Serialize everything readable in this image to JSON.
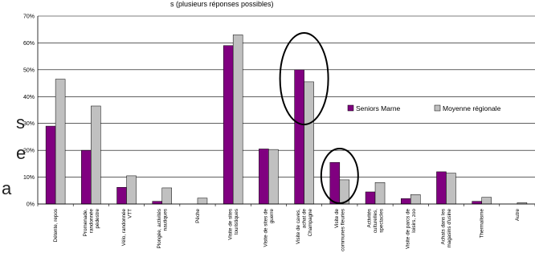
{
  "chart_data": {
    "type": "bar",
    "title": "",
    "xlabel": "",
    "ylabel": "",
    "ylim": [
      0,
      70
    ],
    "yticks": [
      "0%",
      "10%",
      "20%",
      "30%",
      "40%",
      "50%",
      "60%",
      "70%"
    ],
    "grid": true,
    "legend_position": "right",
    "categories": [
      [
        "Détente, repos"
      ],
      [
        "Promenade,",
        "randonnée",
        "pédestre"
      ],
      [
        "Vélo, randonnée",
        "VTT"
      ],
      [
        "Plongée, activités",
        "nautiques"
      ],
      [
        "Pêche"
      ],
      [
        "Visite de sites",
        "touristiques"
      ],
      [
        "Visite de sites de",
        "guerre"
      ],
      [
        "Visite de caves,",
        "achat de",
        "Champagne"
      ],
      [
        "Visite de",
        "communes fleuries"
      ],
      [
        "Activités",
        "culturelles,",
        "spectacles"
      ],
      [
        "Visite de parcs de",
        "loisirs, zoo"
      ],
      [
        "Achats dans les",
        "magasins d'usine"
      ],
      [
        "Thermalisme"
      ],
      [
        "Autre"
      ]
    ],
    "series": [
      {
        "name": "Seniors Marne",
        "color": "#800080",
        "values": [
          29,
          20,
          6.2,
          1,
          0,
          59,
          20.5,
          50,
          15.5,
          4.5,
          2,
          12,
          1,
          0
        ]
      },
      {
        "name": "Moyenne régionale",
        "color": "#c0c0c0",
        "values": [
          46.5,
          36.5,
          10.5,
          6,
          2.2,
          63,
          20.3,
          45.5,
          9,
          8,
          3.5,
          11.5,
          2.5,
          0.5
        ]
      }
    ],
    "annotations": [
      "ellipse-around-visite-de-caves",
      "ellipse-around-visite-de-communes-fleuries"
    ]
  },
  "top_text": "s (plusieurs réponses possibles)",
  "side_letters": [
    "s",
    "e",
    "a"
  ]
}
